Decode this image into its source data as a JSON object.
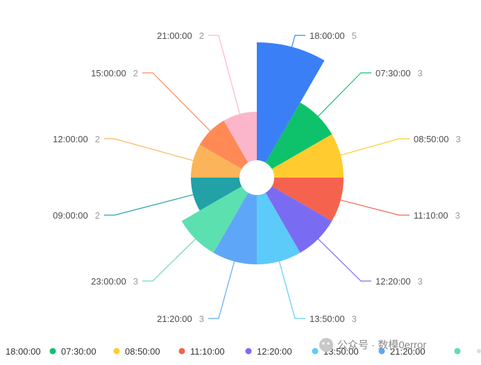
{
  "chart_data": {
    "type": "pie",
    "subtype": "nightingale-rose",
    "legend_position": "bottom",
    "categories": [
      "18:00:00",
      "07:30:00",
      "08:50:00",
      "11:10:00",
      "12:20:00",
      "13:50:00",
      "21:20:00",
      "23:00:00",
      "09:00:00",
      "12:00:00",
      "15:00:00",
      "21:00:00"
    ],
    "values": [
      5,
      3,
      3,
      3,
      3,
      3,
      3,
      3,
      2,
      2,
      2,
      2
    ],
    "colors": [
      "#3a7ff6",
      "#0ec26b",
      "#ffcb2e",
      "#f5634e",
      "#7a6cf2",
      "#5ccbf9",
      "#5ea7f8",
      "#5ce0b0",
      "#22a1a6",
      "#fbb45a",
      "#ff8a56",
      "#fcb6cb"
    ],
    "legend_visible": [
      "18:00:00",
      "07:30:00",
      "08:50:00",
      "11:10:00",
      "12:20:00",
      "13:50:00",
      "21:20:00"
    ]
  },
  "watermark": {
    "text": "公众号 · 数模0error"
  }
}
